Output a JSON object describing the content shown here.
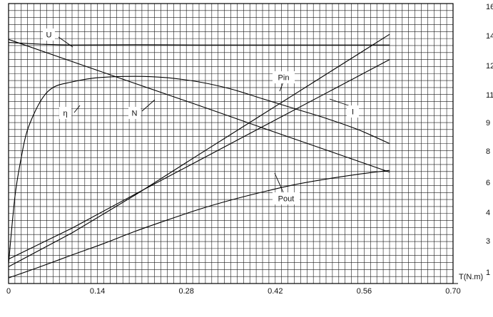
{
  "chart_data": {
    "type": "line",
    "xlabel": "T(N.m)",
    "ylabel": "",
    "xlim": [
      0,
      0.7
    ],
    "x_ticks": [
      "0",
      "0.14",
      "0.28",
      "0.42",
      "0.56",
      "0.70"
    ],
    "y_ticks_right": [
      "16",
      "14",
      "12",
      "11",
      "9",
      "8",
      "6",
      "4",
      "3",
      "1"
    ],
    "grid": true,
    "series": [
      {
        "name": "U",
        "x": [
          0,
          0.05,
          0.1,
          0.2,
          0.3,
          0.4,
          0.5,
          0.6
        ],
        "y": [
          0.861,
          0.855,
          0.852,
          0.853,
          0.852,
          0.852,
          0.852,
          0.852
        ]
      },
      {
        "name": "N",
        "x": [
          0,
          0.1,
          0.2,
          0.3,
          0.4,
          0.5,
          0.6
        ],
        "y": [
          0.872,
          0.793,
          0.714,
          0.636,
          0.556,
          0.477,
          0.398
        ]
      },
      {
        "name": "η",
        "x": [
          0,
          0.01,
          0.02,
          0.03,
          0.05,
          0.07,
          0.1,
          0.14,
          0.2,
          0.25,
          0.3,
          0.35,
          0.4,
          0.45,
          0.5,
          0.55,
          0.6
        ],
        "y": [
          0.07,
          0.31,
          0.45,
          0.55,
          0.65,
          0.7,
          0.72,
          0.735,
          0.74,
          0.735,
          0.72,
          0.695,
          0.66,
          0.625,
          0.59,
          0.55,
          0.5
        ]
      },
      {
        "name": "Pin",
        "x": [
          0,
          0.1,
          0.2,
          0.3,
          0.4,
          0.5,
          0.6
        ],
        "y": [
          0.06,
          0.181,
          0.317,
          0.461,
          0.604,
          0.747,
          0.89
        ]
      },
      {
        "name": "I",
        "x": [
          0,
          0.1,
          0.2,
          0.3,
          0.4,
          0.5,
          0.6
        ],
        "y": [
          0.087,
          0.198,
          0.32,
          0.44,
          0.56,
          0.68,
          0.8
        ]
      },
      {
        "name": "Pout",
        "x": [
          0,
          0.05,
          0.1,
          0.15,
          0.2,
          0.25,
          0.3,
          0.35,
          0.4,
          0.45,
          0.5,
          0.55,
          0.6
        ],
        "y": [
          0.02,
          0.06,
          0.102,
          0.143,
          0.187,
          0.227,
          0.265,
          0.298,
          0.327,
          0.353,
          0.373,
          0.39,
          0.404
        ]
      }
    ]
  }
}
